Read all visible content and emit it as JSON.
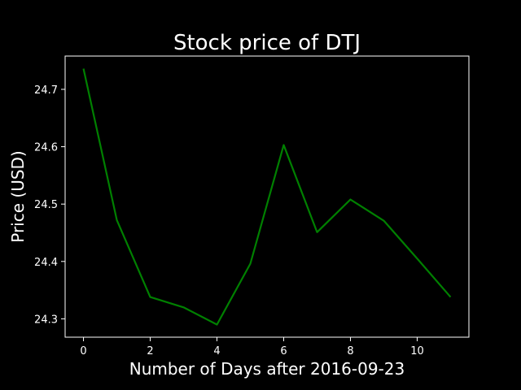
{
  "chart_data": {
    "type": "line",
    "title": "Stock price of DTJ",
    "xlabel": "Number of Days after 2016-09-23",
    "ylabel": "Price (USD)",
    "x": [
      0,
      1,
      2,
      3,
      4,
      5,
      6,
      7,
      8,
      9,
      10,
      11
    ],
    "series": [
      {
        "values": [
          24.736,
          24.472,
          24.338,
          24.32,
          24.29,
          24.396,
          24.603,
          24.451,
          24.508,
          24.471,
          24.405,
          24.338
        ],
        "color": "#008000"
      }
    ],
    "xlim": [
      -0.55,
      11.55
    ],
    "ylim": [
      24.268,
      24.758
    ],
    "xticks": [
      0,
      2,
      4,
      6,
      8,
      10
    ],
    "yticks": [
      24.3,
      24.4,
      24.5,
      24.6,
      24.7
    ],
    "ytick_labels": [
      "24.3",
      "24.4",
      "24.5",
      "24.6",
      "24.7"
    ],
    "grid": false,
    "background_color": "#000000",
    "foreground_color": "#ffffff"
  }
}
